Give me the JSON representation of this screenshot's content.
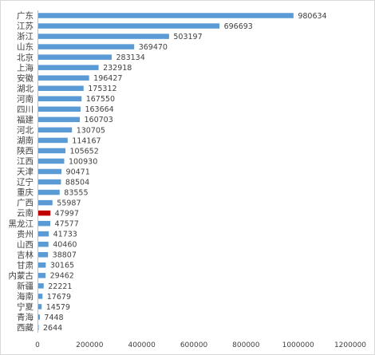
{
  "chart_data": {
    "type": "bar",
    "orientation": "horizontal",
    "title": "",
    "xlabel": "",
    "ylabel": "",
    "xlim": [
      0,
      1200000
    ],
    "x_ticks": [
      0,
      200000,
      400000,
      600000,
      800000,
      1000000,
      1200000
    ],
    "x_tick_labels": [
      "0",
      "200000",
      "400000",
      "600000",
      "800000",
      "1000000",
      "1200000"
    ],
    "grid": false,
    "legend": "none",
    "bar_color": "#5b9bd5",
    "highlight_color": "#c00000",
    "highlight_category": "云南",
    "categories": [
      "广东",
      "江苏",
      "浙江",
      "山东",
      "北京",
      "上海",
      "安徽",
      "湖北",
      "河南",
      "四川",
      "福建",
      "河北",
      "湖南",
      "陕西",
      "江西",
      "天津",
      "辽宁",
      "重庆",
      "广西",
      "云南",
      "黑龙江",
      "贵州",
      "山西",
      "吉林",
      "甘肃",
      "内蒙古",
      "新疆",
      "海南",
      "宁夏",
      "青海",
      "西藏"
    ],
    "values": [
      980634,
      696693,
      503197,
      369470,
      283134,
      232918,
      196427,
      175312,
      167550,
      163664,
      160703,
      130705,
      114167,
      105652,
      100930,
      90471,
      88504,
      83555,
      55987,
      47997,
      47577,
      41733,
      40460,
      38807,
      30165,
      29462,
      22221,
      17679,
      14579,
      7448,
      2644
    ],
    "value_labels": [
      "980634",
      "696693",
      "503197",
      "369470",
      "283134",
      "232918",
      "196427",
      "175312",
      "167550",
      "163664",
      "160703",
      "130705",
      "114167",
      "105652",
      "100930",
      "90471",
      "88504",
      "83555",
      "55987",
      "47997",
      "47577",
      "41733",
      "40460",
      "38807",
      "30165",
      "29462",
      "22221",
      "17679",
      "14579",
      "7448",
      "2644"
    ]
  }
}
